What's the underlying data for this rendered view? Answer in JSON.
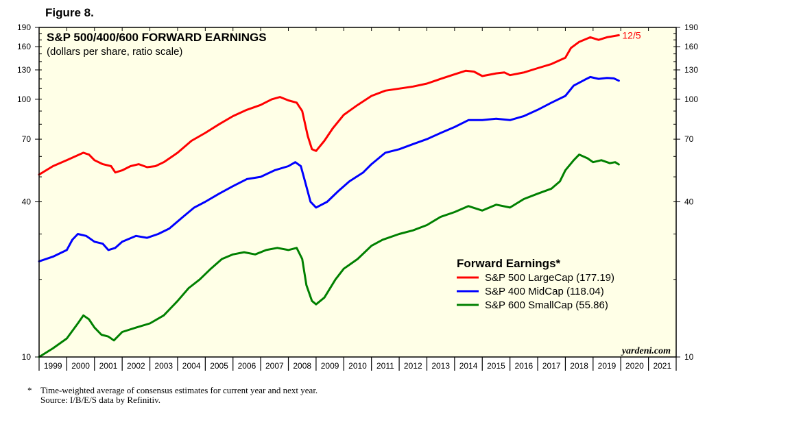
{
  "figure_label": "Figure 8.",
  "watermark": "yardeni.com",
  "footnote": {
    "marker": "*",
    "note": "Time-weighted average of consensus estimates for current year and next year.",
    "source": "Source: I/B/E/S data by Refinitiv."
  },
  "chart_data": {
    "type": "line",
    "title": "S&P 500/400/600 FORWARD EARNINGS",
    "subtitle": "(dollars per share, ratio scale)",
    "y_scale": "log",
    "ylim": [
      10,
      190
    ],
    "y_ticks": [
      10,
      40,
      70,
      100,
      130,
      160,
      190
    ],
    "xlim": [
      1999,
      2022
    ],
    "x_tick_labels": [
      "1999",
      "2000",
      "2001",
      "2002",
      "2003",
      "2004",
      "2005",
      "2006",
      "2007",
      "2008",
      "2009",
      "2010",
      "2011",
      "2012",
      "2013",
      "2014",
      "2015",
      "2016",
      "2017",
      "2018",
      "2019",
      "2020",
      "2021"
    ],
    "end_annotation": "12/5",
    "legend": {
      "title": "Forward Earnings*",
      "placement": "center-right",
      "entries": [
        "S&P 500 LargeCap (177.19)",
        "S&P 400 MidCap (118.04)",
        "S&P 600 SmallCap (55.86)"
      ]
    },
    "series": [
      {
        "name": "S&P 500 LargeCap (177.19)",
        "color": "#ff0000",
        "points": [
          [
            1999.0,
            51
          ],
          [
            1999.5,
            55
          ],
          [
            2000.0,
            58
          ],
          [
            2000.6,
            62
          ],
          [
            2000.8,
            61
          ],
          [
            2001.0,
            58
          ],
          [
            2001.3,
            56
          ],
          [
            2001.6,
            55
          ],
          [
            2001.75,
            52
          ],
          [
            2002.0,
            53
          ],
          [
            2002.3,
            55
          ],
          [
            2002.6,
            56
          ],
          [
            2002.9,
            54.5
          ],
          [
            2003.2,
            55
          ],
          [
            2003.5,
            57
          ],
          [
            2004.0,
            62
          ],
          [
            2004.5,
            69
          ],
          [
            2005.0,
            74
          ],
          [
            2005.5,
            80
          ],
          [
            2006.0,
            86
          ],
          [
            2006.5,
            91
          ],
          [
            2007.0,
            95
          ],
          [
            2007.4,
            100
          ],
          [
            2007.7,
            102
          ],
          [
            2008.0,
            99
          ],
          [
            2008.3,
            97
          ],
          [
            2008.5,
            90
          ],
          [
            2008.7,
            72
          ],
          [
            2008.85,
            64
          ],
          [
            2009.0,
            63
          ],
          [
            2009.3,
            69
          ],
          [
            2009.6,
            77
          ],
          [
            2010.0,
            87
          ],
          [
            2010.5,
            95
          ],
          [
            2011.0,
            103
          ],
          [
            2011.5,
            108
          ],
          [
            2012.0,
            110
          ],
          [
            2012.5,
            112
          ],
          [
            2013.0,
            115
          ],
          [
            2013.5,
            120
          ],
          [
            2014.0,
            125
          ],
          [
            2014.4,
            129
          ],
          [
            2014.7,
            128
          ],
          [
            2015.0,
            123
          ],
          [
            2015.5,
            126
          ],
          [
            2015.8,
            127
          ],
          [
            2016.0,
            124
          ],
          [
            2016.5,
            127
          ],
          [
            2017.0,
            132
          ],
          [
            2017.5,
            137
          ],
          [
            2018.0,
            145
          ],
          [
            2018.2,
            158
          ],
          [
            2018.5,
            167
          ],
          [
            2018.9,
            174
          ],
          [
            2019.2,
            170
          ],
          [
            2019.5,
            174
          ],
          [
            2019.93,
            177.19
          ]
        ]
      },
      {
        "name": "S&P 400 MidCap (118.04)",
        "color": "#0000ff",
        "points": [
          [
            1999.0,
            23.5
          ],
          [
            1999.5,
            24.5
          ],
          [
            2000.0,
            26
          ],
          [
            2000.2,
            28.5
          ],
          [
            2000.4,
            30
          ],
          [
            2000.7,
            29.5
          ],
          [
            2001.0,
            28
          ],
          [
            2001.3,
            27.5
          ],
          [
            2001.5,
            26
          ],
          [
            2001.75,
            26.5
          ],
          [
            2002.0,
            28
          ],
          [
            2002.5,
            29.5
          ],
          [
            2002.9,
            29
          ],
          [
            2003.3,
            30
          ],
          [
            2003.7,
            31.5
          ],
          [
            2004.2,
            35
          ],
          [
            2004.6,
            38
          ],
          [
            2005.0,
            40
          ],
          [
            2005.5,
            43
          ],
          [
            2006.0,
            46
          ],
          [
            2006.5,
            49
          ],
          [
            2007.0,
            50
          ],
          [
            2007.5,
            53
          ],
          [
            2008.0,
            55
          ],
          [
            2008.25,
            57
          ],
          [
            2008.45,
            55
          ],
          [
            2008.6,
            48
          ],
          [
            2008.8,
            40
          ],
          [
            2009.0,
            38
          ],
          [
            2009.4,
            40
          ],
          [
            2009.8,
            44
          ],
          [
            2010.2,
            48
          ],
          [
            2010.7,
            52
          ],
          [
            2011.0,
            56
          ],
          [
            2011.5,
            62
          ],
          [
            2012.0,
            64
          ],
          [
            2012.5,
            67
          ],
          [
            2013.0,
            70
          ],
          [
            2013.5,
            74
          ],
          [
            2014.0,
            78
          ],
          [
            2014.5,
            83
          ],
          [
            2015.0,
            83
          ],
          [
            2015.5,
            84
          ],
          [
            2016.0,
            83
          ],
          [
            2016.5,
            86
          ],
          [
            2017.0,
            91
          ],
          [
            2017.5,
            97
          ],
          [
            2018.0,
            103
          ],
          [
            2018.3,
            113
          ],
          [
            2018.7,
            119
          ],
          [
            2018.9,
            122
          ],
          [
            2019.2,
            120
          ],
          [
            2019.5,
            121
          ],
          [
            2019.75,
            120.5
          ],
          [
            2019.93,
            118.04
          ]
        ]
      },
      {
        "name": "S&P 600 SmallCap (55.86)",
        "color": "#008000",
        "points": [
          [
            1999.0,
            10
          ],
          [
            1999.5,
            10.8
          ],
          [
            2000.0,
            11.8
          ],
          [
            2000.4,
            13.5
          ],
          [
            2000.6,
            14.5
          ],
          [
            2000.8,
            14
          ],
          [
            2001.0,
            13
          ],
          [
            2001.25,
            12.2
          ],
          [
            2001.5,
            12
          ],
          [
            2001.7,
            11.6
          ],
          [
            2002.0,
            12.5
          ],
          [
            2002.5,
            13
          ],
          [
            2003.0,
            13.5
          ],
          [
            2003.5,
            14.5
          ],
          [
            2004.0,
            16.5
          ],
          [
            2004.4,
            18.5
          ],
          [
            2004.8,
            20
          ],
          [
            2005.2,
            22
          ],
          [
            2005.6,
            24
          ],
          [
            2006.0,
            25
          ],
          [
            2006.4,
            25.5
          ],
          [
            2006.8,
            25
          ],
          [
            2007.2,
            26
          ],
          [
            2007.6,
            26.5
          ],
          [
            2008.0,
            26
          ],
          [
            2008.3,
            26.5
          ],
          [
            2008.5,
            24
          ],
          [
            2008.65,
            19
          ],
          [
            2008.85,
            16.5
          ],
          [
            2009.0,
            16
          ],
          [
            2009.3,
            17
          ],
          [
            2009.7,
            20
          ],
          [
            2010.0,
            22
          ],
          [
            2010.5,
            24
          ],
          [
            2011.0,
            27
          ],
          [
            2011.4,
            28.5
          ],
          [
            2012.0,
            30
          ],
          [
            2012.5,
            31
          ],
          [
            2013.0,
            32.5
          ],
          [
            2013.5,
            35
          ],
          [
            2014.0,
            36.5
          ],
          [
            2014.5,
            38.5
          ],
          [
            2015.0,
            37
          ],
          [
            2015.5,
            39
          ],
          [
            2016.0,
            38
          ],
          [
            2016.5,
            41
          ],
          [
            2017.0,
            43
          ],
          [
            2017.5,
            45
          ],
          [
            2017.8,
            48
          ],
          [
            2018.0,
            53
          ],
          [
            2018.3,
            58
          ],
          [
            2018.5,
            61
          ],
          [
            2018.8,
            59
          ],
          [
            2019.0,
            57
          ],
          [
            2019.3,
            58
          ],
          [
            2019.6,
            56.5
          ],
          [
            2019.8,
            57
          ],
          [
            2019.93,
            55.86
          ]
        ]
      }
    ]
  }
}
